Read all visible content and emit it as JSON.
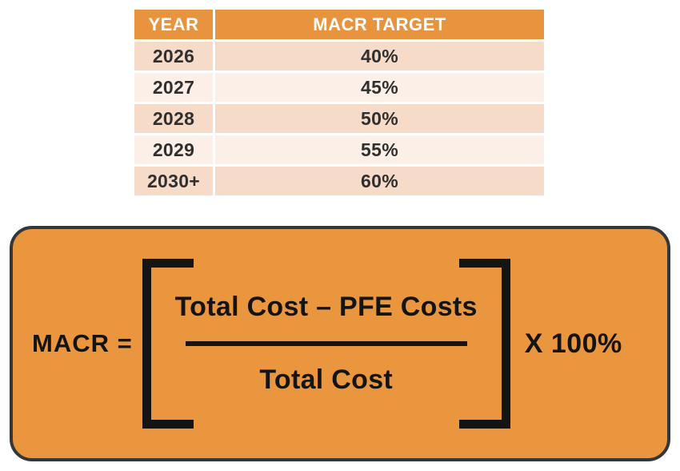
{
  "table": {
    "columns": [
      "YEAR",
      "MACR TARGET"
    ],
    "rows": [
      {
        "year": "2026",
        "target": "40%"
      },
      {
        "year": "2027",
        "target": "45%"
      },
      {
        "year": "2028",
        "target": "50%"
      },
      {
        "year": "2029",
        "target": "55%"
      },
      {
        "year": "2030+",
        "target": "60%"
      }
    ]
  },
  "formula": {
    "lhs": "MACR =",
    "numerator": "Total Cost – PFE Costs",
    "denominator": "Total Cost",
    "multiplier": "X 100%"
  },
  "colors": {
    "header_bg": "#E8943E",
    "row_dark": "#F6DBC9",
    "row_light": "#FBEFE7",
    "box_bg": "#E9963F",
    "box_border": "#33363B",
    "table_text": "#2F2F2F",
    "header_text": "#FFFFFF",
    "formula_text": "#141414",
    "page_bg": "#FFFFFF"
  }
}
